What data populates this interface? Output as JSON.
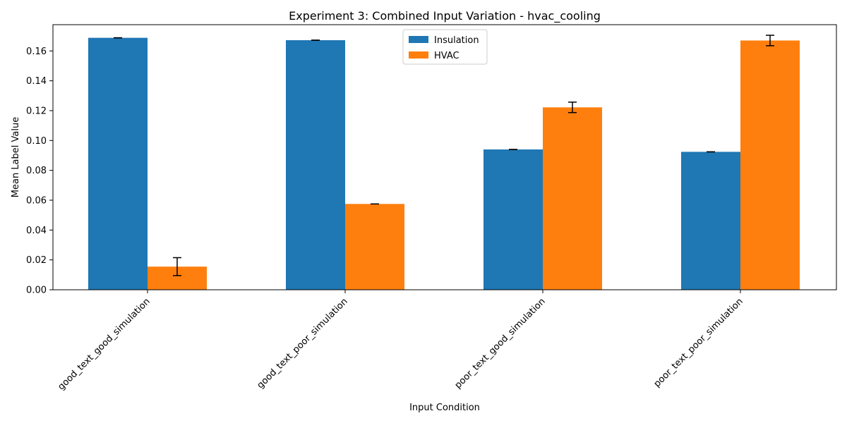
{
  "chart_data": {
    "type": "bar",
    "title": "Experiment 3: Combined Input Variation - hvac_cooling",
    "xlabel": "Input Condition",
    "ylabel": "Mean Label Value",
    "categories": [
      "good_text_good_simulation",
      "good_text_poor_simulation",
      "poor_text_good_simulation",
      "poor_text_poor_simulation"
    ],
    "series": [
      {
        "name": "Insulation",
        "color": "#1f77b4",
        "values": [
          0.1688,
          0.1672,
          0.094,
          0.0924
        ],
        "errors": [
          0.0,
          0.0,
          0.0,
          0.0
        ]
      },
      {
        "name": "HVAC",
        "color": "#ff7f0e",
        "values": [
          0.0155,
          0.0575,
          0.1222,
          0.167
        ],
        "errors": [
          0.006,
          0.0,
          0.0035,
          0.0035
        ]
      }
    ],
    "ylim": [
      0,
      0.1776
    ],
    "yticks": [
      "0.00",
      "0.02",
      "0.04",
      "0.06",
      "0.08",
      "0.10",
      "0.12",
      "0.14",
      "0.16"
    ],
    "ytick_values": [
      0,
      0.02,
      0.04,
      0.06,
      0.08,
      0.1,
      0.12,
      0.14,
      0.16
    ],
    "legend_position": "top-center",
    "grid": false
  }
}
